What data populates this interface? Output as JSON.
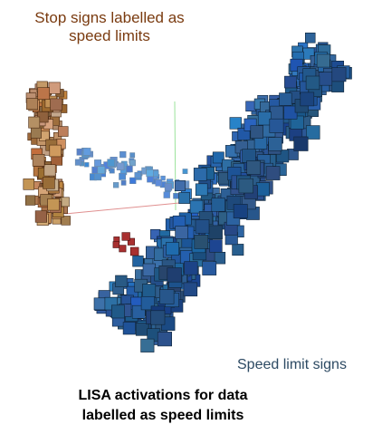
{
  "labels": {
    "stop_cluster_line1": "Stop signs labelled as",
    "stop_cluster_line2": "speed limits",
    "speed_cluster": "Speed limit signs",
    "caption_line1": "LISA activations for data",
    "caption_line2": "labelled as speed limits"
  },
  "colors": {
    "stop_label": "#7a3b10",
    "speed_label": "#2d4a63",
    "stop_thumb": "#c48a5a",
    "speed_thumb": "#2c5784",
    "axis_green": "#9be39b",
    "axis_red": "#e09090"
  }
}
